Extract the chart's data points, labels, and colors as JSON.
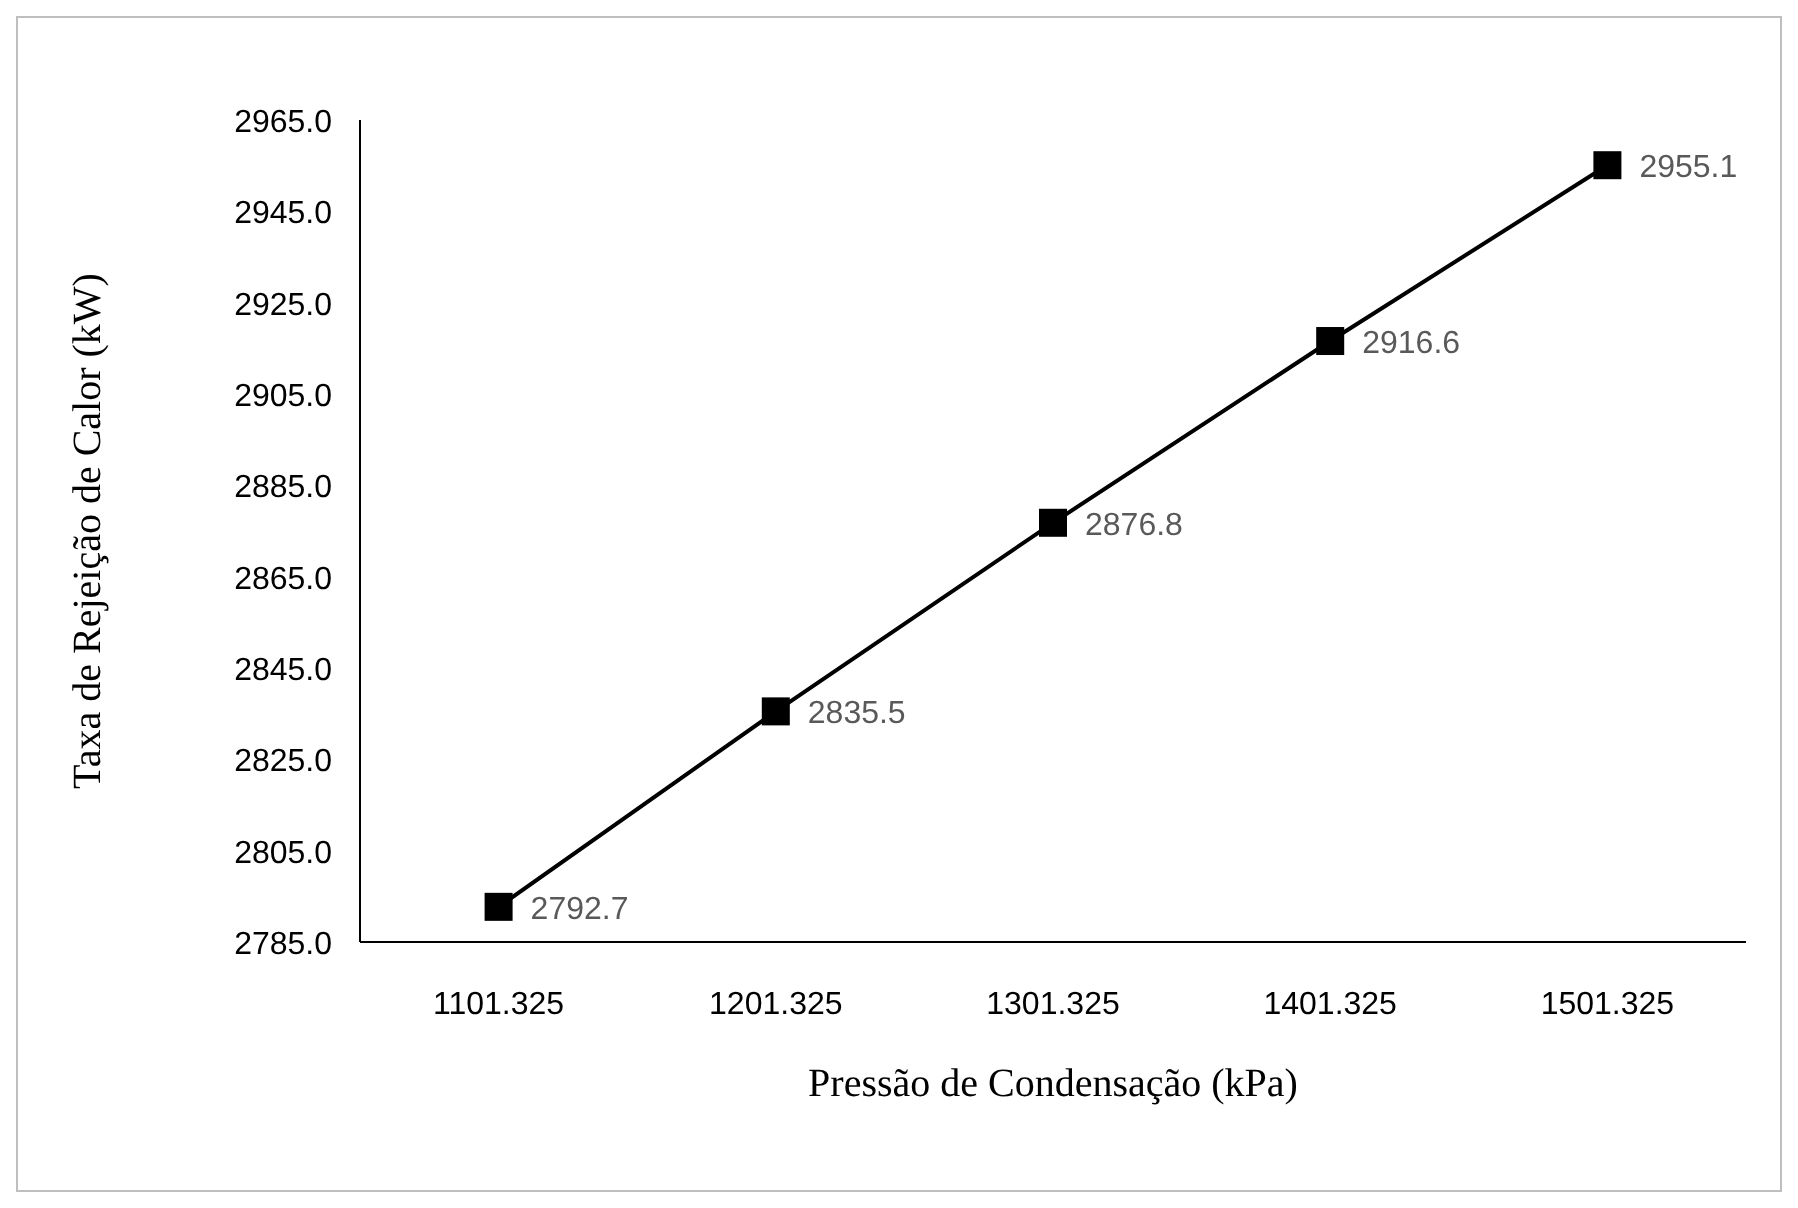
{
  "chart_data": {
    "type": "line",
    "xlabel": "Pressão de Condensação (kPa)",
    "ylabel": "Taxa de Rejeição de Calor (kW)",
    "categories": [
      "1101.325",
      "1201.325",
      "1301.325",
      "1401.325",
      "1501.325"
    ],
    "series": [
      {
        "color": "#000000",
        "values": [
          2792.7,
          2835.5,
          2876.8,
          2916.6,
          2955.1
        ]
      }
    ],
    "ylim": [
      2785,
      2965
    ],
    "yticks": [
      {
        "value": 2785,
        "label": "2785.0"
      },
      {
        "value": 2805,
        "label": "2805.0"
      },
      {
        "value": 2825,
        "label": "2825.0"
      },
      {
        "value": 2845,
        "label": "2845.0"
      },
      {
        "value": 2865,
        "label": "2865.0"
      },
      {
        "value": 2885,
        "label": "2885.0"
      },
      {
        "value": 2905,
        "label": "2905.0"
      },
      {
        "value": 2925,
        "label": "2925.0"
      },
      {
        "value": 2945,
        "label": "2945.0"
      },
      {
        "value": 2965,
        "label": "2965.0"
      }
    ],
    "marker": "square",
    "line_style": "solid",
    "data_labels": true,
    "grid": false
  }
}
